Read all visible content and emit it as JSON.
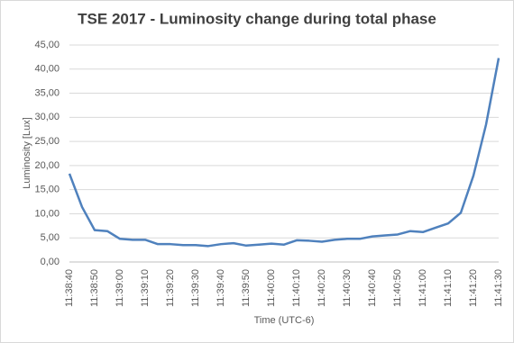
{
  "chart_data": {
    "type": "line",
    "title": "TSE 2017 - Luminosity change during total phase",
    "x_label": "Time (UTC-6)",
    "y_label": "Luminosity [Lux]",
    "categories": [
      "11:38:40",
      null,
      "11:38:50",
      null,
      "11:39:00",
      null,
      "11:39:10",
      null,
      "11:39:20",
      null,
      "11:39:30",
      null,
      "11:39:40",
      null,
      "11:39:50",
      null,
      "11:40:00",
      null,
      "11:40:10",
      null,
      "11:40:20",
      null,
      "11:40:30",
      null,
      "11:40:40",
      null,
      "11:40:50",
      null,
      "11:41:00",
      null,
      "11:41:10",
      null,
      "11:41:20",
      null,
      "11:41:30"
    ],
    "values": [
      18.3,
      11.4,
      6.6,
      6.4,
      4.8,
      4.6,
      4.6,
      3.7,
      3.7,
      3.5,
      3.5,
      3.3,
      3.7,
      3.9,
      3.4,
      3.6,
      3.8,
      3.6,
      4.5,
      4.4,
      4.2,
      4.6,
      4.8,
      4.8,
      5.3,
      5.5,
      5.7,
      6.4,
      6.2,
      7.1,
      8.0,
      10.2,
      17.9,
      28.5,
      42.3
    ],
    "color": "#4f81bd",
    "ylim": [
      0,
      45
    ],
    "yticks": [
      {
        "value": 0,
        "label": "0,00"
      },
      {
        "value": 5,
        "label": "5,00"
      },
      {
        "value": 10,
        "label": "10,00"
      },
      {
        "value": 15,
        "label": "15,00"
      },
      {
        "value": 20,
        "label": "20,00"
      },
      {
        "value": 25,
        "label": "25,00"
      },
      {
        "value": 30,
        "label": "30,00"
      },
      {
        "value": 35,
        "label": "35,00"
      },
      {
        "value": 40,
        "label": "40,00"
      },
      {
        "value": 45,
        "label": "45,00"
      }
    ],
    "grid": true
  }
}
